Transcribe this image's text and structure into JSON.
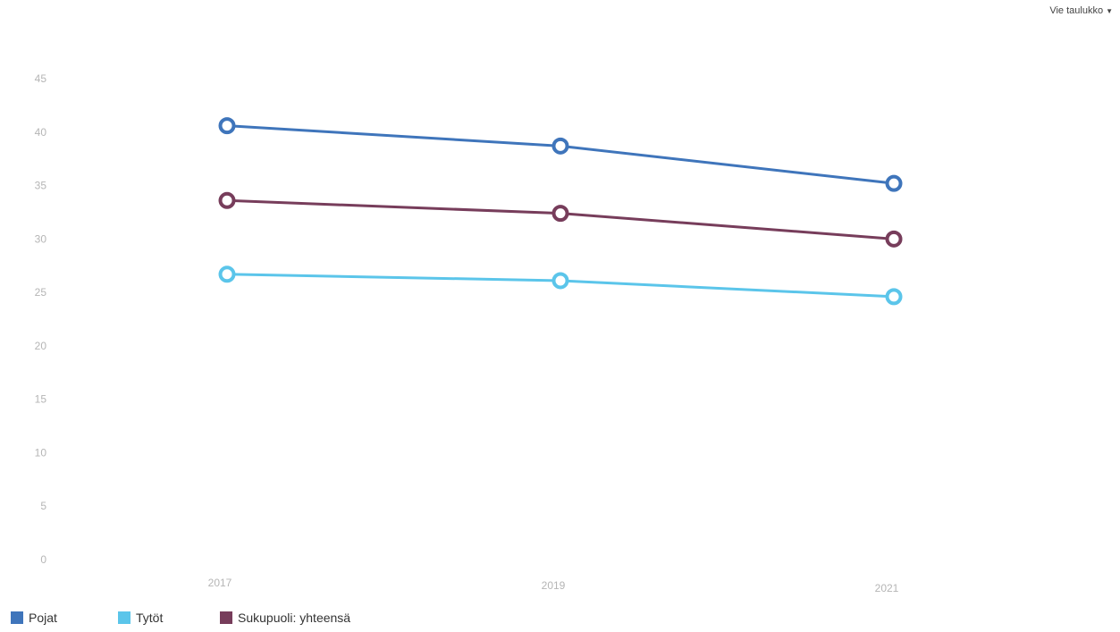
{
  "toolbar": {
    "export_label": "Vie taulukko"
  },
  "chart_data": {
    "type": "line",
    "x": [
      "2017",
      "2019",
      "2021"
    ],
    "ylim": [
      0,
      45
    ],
    "yticks": [
      0,
      5,
      10,
      15,
      20,
      25,
      30,
      35,
      40,
      45
    ],
    "grid": false,
    "legend_position": "bottom-left",
    "series": [
      {
        "name": "Pojat",
        "color": "#3f75bb",
        "values": [
          40.6,
          38.7,
          35.2
        ]
      },
      {
        "name": "Tytöt",
        "color": "#5bc5ea",
        "values": [
          26.7,
          26.1,
          24.6
        ]
      },
      {
        "name": "Sukupuoli: yhteensä",
        "color": "#773d5b",
        "values": [
          33.6,
          32.4,
          30.0
        ]
      }
    ]
  }
}
